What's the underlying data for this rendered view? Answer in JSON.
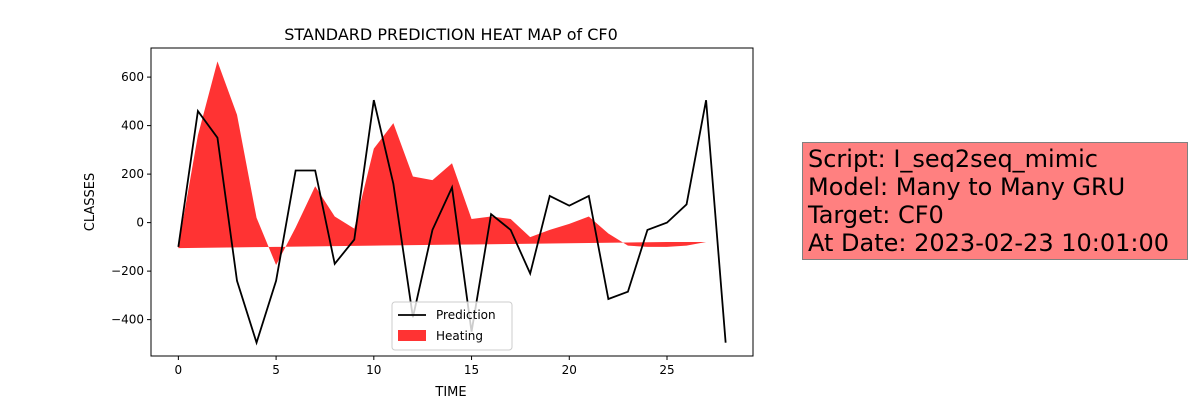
{
  "chart_data": {
    "type": "line",
    "title": "STANDARD PREDICTION HEAT MAP of CF0",
    "xlabel": "TIME",
    "ylabel": "CLASSES",
    "xlim": [
      -1.4,
      29.4
    ],
    "ylim": [
      -550,
      720
    ],
    "xticks": [
      0,
      5,
      10,
      15,
      20,
      25
    ],
    "yticks": [
      -400,
      -200,
      0,
      200,
      400,
      600
    ],
    "grid": false,
    "legend_position": "lower center",
    "x": [
      0,
      1,
      2,
      3,
      4,
      5,
      6,
      7,
      8,
      9,
      10,
      11,
      12,
      13,
      14,
      15,
      16,
      17,
      18,
      19,
      20,
      21,
      22,
      23,
      24,
      25,
      26,
      27,
      28
    ],
    "series": [
      {
        "name": "Prediction",
        "kind": "line",
        "color": "#000000",
        "values": [
          -100,
          460,
          350,
          -240,
          -495,
          -240,
          215,
          215,
          -170,
          -70,
          505,
          160,
          -390,
          -30,
          145,
          -450,
          35,
          -30,
          -210,
          110,
          70,
          110,
          -315,
          -285,
          -30,
          0,
          75,
          505,
          -495
        ]
      },
      {
        "name": "Heating",
        "kind": "fill_between",
        "color": "#ff0000",
        "opacity": 0.8,
        "values": [
          -100,
          360,
          665,
          445,
          20,
          -175,
          -20,
          150,
          25,
          -25,
          305,
          410,
          190,
          175,
          245,
          15,
          25,
          15,
          -60,
          -30,
          -5,
          25,
          -45,
          -95,
          -100,
          -100,
          -95,
          -80,
          -80
        ],
        "baseline": [
          -105,
          -104,
          -103,
          -102,
          -101,
          -100,
          -99,
          -98,
          -97,
          -96,
          -95,
          -94,
          -93,
          -92,
          -91,
          -90,
          -89,
          -88,
          -87,
          -86,
          -85,
          -84,
          -83,
          -82,
          -81,
          -80,
          -80,
          -80,
          -80
        ]
      }
    ]
  },
  "info_box": {
    "background_color": "#ff8080",
    "lines": [
      "Script: I_seq2seq_mimic",
      "Model: Many to Many GRU",
      "Target: CF0",
      "At Date: 2023-02-23 10:01:00"
    ]
  }
}
